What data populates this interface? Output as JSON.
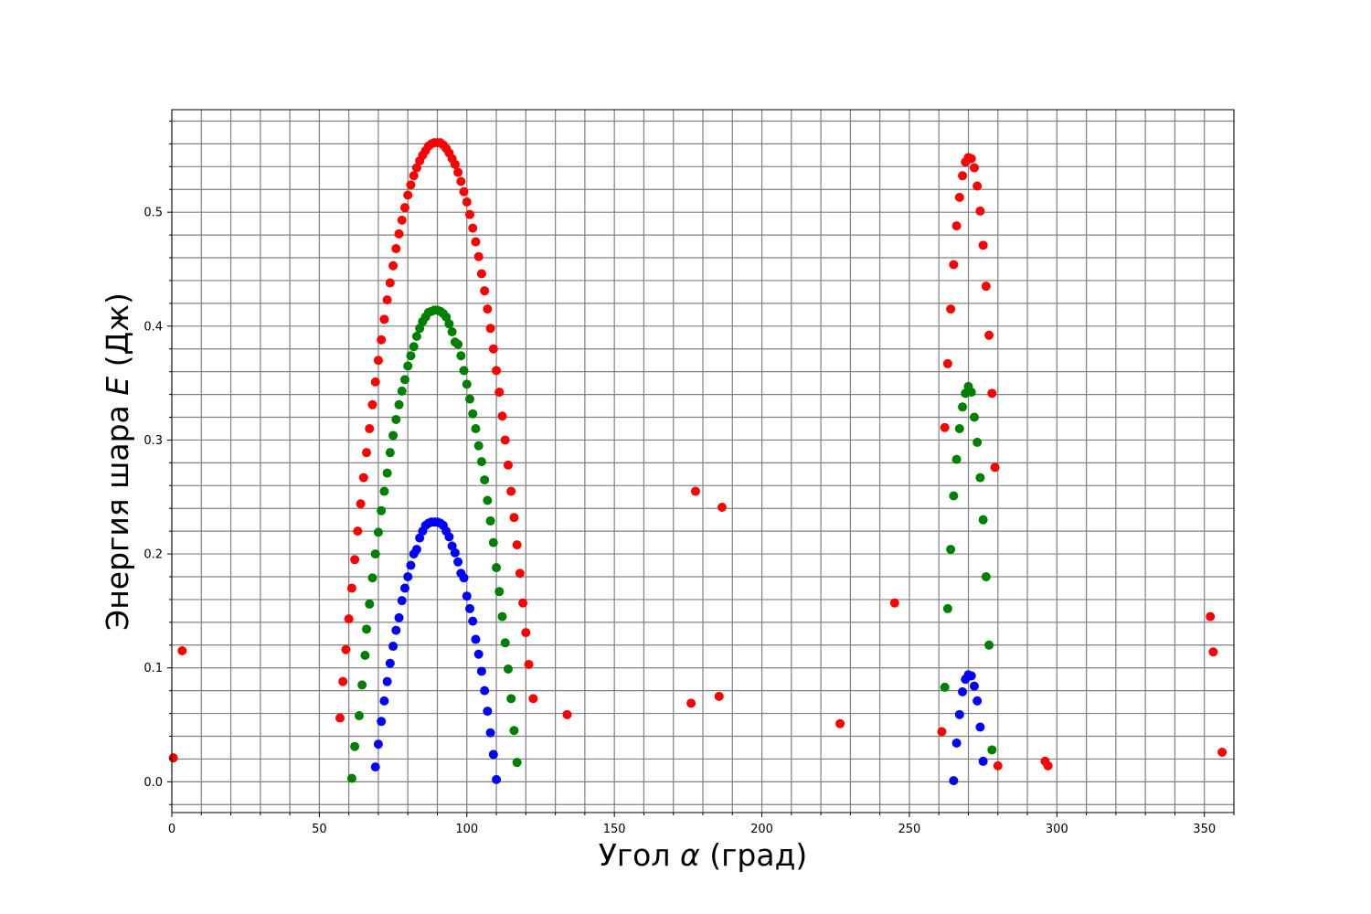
{
  "chart_data": {
    "type": "scatter",
    "title": "",
    "xlabel": {
      "prefix": "Угол ",
      "symbol": "α",
      "suffix": " (град)"
    },
    "ylabel": {
      "prefix": "Энергия шара ",
      "symbol": "E",
      "suffix": " (Дж)"
    },
    "xlim": [
      0,
      360
    ],
    "ylim": [
      -0.027,
      0.59
    ],
    "x_ticks": [
      0,
      50,
      100,
      150,
      200,
      250,
      300,
      350
    ],
    "y_ticks": [
      0.0,
      0.1,
      0.2,
      0.3,
      0.4,
      0.5
    ],
    "y_tick_labels": [
      "0.0",
      "0.1",
      "0.2",
      "0.3",
      "0.4",
      "0.5"
    ],
    "grid": true,
    "legend": "none",
    "series": [
      {
        "color": "#ff0000",
        "points": [
          [
            0.5,
            0.021
          ],
          [
            3.5,
            0.115
          ],
          [
            57,
            0.056
          ],
          [
            58,
            0.088
          ],
          [
            59,
            0.116
          ],
          [
            60,
            0.143
          ],
          [
            61,
            0.17
          ],
          [
            62,
            0.195
          ],
          [
            63,
            0.22
          ],
          [
            64,
            0.244
          ],
          [
            65,
            0.267
          ],
          [
            66,
            0.289
          ],
          [
            67,
            0.31
          ],
          [
            68,
            0.331
          ],
          [
            69,
            0.351
          ],
          [
            70,
            0.37
          ],
          [
            71,
            0.388
          ],
          [
            72,
            0.406
          ],
          [
            73,
            0.423
          ],
          [
            74,
            0.438
          ],
          [
            75,
            0.453
          ],
          [
            76,
            0.468
          ],
          [
            77,
            0.481
          ],
          [
            78,
            0.493
          ],
          [
            79,
            0.504
          ],
          [
            80,
            0.515
          ],
          [
            81,
            0.524
          ],
          [
            82,
            0.532
          ],
          [
            83,
            0.539
          ],
          [
            84,
            0.545
          ],
          [
            85,
            0.55
          ],
          [
            86,
            0.554
          ],
          [
            87,
            0.558
          ],
          [
            88,
            0.56
          ],
          [
            89,
            0.561
          ],
          [
            90,
            0.561
          ],
          [
            91,
            0.561
          ],
          [
            92,
            0.559
          ],
          [
            93,
            0.556
          ],
          [
            94,
            0.552
          ],
          [
            95,
            0.547
          ],
          [
            96,
            0.542
          ],
          [
            97,
            0.535
          ],
          [
            98,
            0.527
          ],
          [
            99,
            0.518
          ],
          [
            100,
            0.509
          ],
          [
            101,
            0.498
          ],
          [
            102,
            0.486
          ],
          [
            103,
            0.474
          ],
          [
            104,
            0.461
          ],
          [
            105,
            0.446
          ],
          [
            106,
            0.431
          ],
          [
            107,
            0.415
          ],
          [
            108,
            0.398
          ],
          [
            109,
            0.38
          ],
          [
            110,
            0.361
          ],
          [
            111,
            0.342
          ],
          [
            112,
            0.321
          ],
          [
            113,
            0.3
          ],
          [
            114,
            0.278
          ],
          [
            115,
            0.255
          ],
          [
            116,
            0.232
          ],
          [
            117,
            0.208
          ],
          [
            118,
            0.183
          ],
          [
            119,
            0.157
          ],
          [
            120,
            0.131
          ],
          [
            121,
            0.103
          ],
          [
            122.5,
            0.073
          ],
          [
            134,
            0.059
          ],
          [
            176,
            0.069
          ],
          [
            177.5,
            0.255
          ],
          [
            185.5,
            0.075
          ],
          [
            186.5,
            0.241
          ],
          [
            226.5,
            0.051
          ],
          [
            245,
            0.157
          ],
          [
            261,
            0.044
          ],
          [
            262,
            0.311
          ],
          [
            263,
            0.367
          ],
          [
            264,
            0.415
          ],
          [
            265,
            0.454
          ],
          [
            266,
            0.488
          ],
          [
            267,
            0.513
          ],
          [
            268,
            0.532
          ],
          [
            269,
            0.544
          ],
          [
            270,
            0.548
          ],
          [
            271,
            0.547
          ],
          [
            272,
            0.539
          ],
          [
            273,
            0.523
          ],
          [
            274,
            0.501
          ],
          [
            275,
            0.471
          ],
          [
            276,
            0.435
          ],
          [
            277,
            0.392
          ],
          [
            278,
            0.341
          ],
          [
            279,
            0.276
          ],
          [
            280,
            0.014
          ],
          [
            296,
            0.018
          ],
          [
            297,
            0.014
          ],
          [
            352,
            0.145
          ],
          [
            353,
            0.114
          ],
          [
            356,
            0.026
          ]
        ]
      },
      {
        "color": "#008000",
        "points": [
          [
            61,
            0.003
          ],
          [
            62,
            0.031
          ],
          [
            63.5,
            0.058
          ],
          [
            64.5,
            0.085
          ],
          [
            65.5,
            0.111
          ],
          [
            66,
            0.134
          ],
          [
            67,
            0.156
          ],
          [
            68,
            0.179
          ],
          [
            69,
            0.2
          ],
          [
            70,
            0.219
          ],
          [
            71,
            0.238
          ],
          [
            72,
            0.255
          ],
          [
            73,
            0.271
          ],
          [
            74,
            0.289
          ],
          [
            75,
            0.304
          ],
          [
            76,
            0.318
          ],
          [
            77,
            0.331
          ],
          [
            78,
            0.343
          ],
          [
            79,
            0.353
          ],
          [
            80,
            0.365
          ],
          [
            81,
            0.374
          ],
          [
            82,
            0.382
          ],
          [
            83,
            0.391
          ],
          [
            84,
            0.398
          ],
          [
            85,
            0.404
          ],
          [
            86,
            0.408
          ],
          [
            87,
            0.412
          ],
          [
            88,
            0.413
          ],
          [
            89,
            0.414
          ],
          [
            90,
            0.414
          ],
          [
            91,
            0.413
          ],
          [
            92,
            0.411
          ],
          [
            93,
            0.408
          ],
          [
            94,
            0.402
          ],
          [
            95,
            0.395
          ],
          [
            96,
            0.386
          ],
          [
            97,
            0.384
          ],
          [
            98,
            0.374
          ],
          [
            99,
            0.361
          ],
          [
            100,
            0.349
          ],
          [
            101,
            0.336
          ],
          [
            102,
            0.323
          ],
          [
            103,
            0.31
          ],
          [
            104,
            0.295
          ],
          [
            105,
            0.281
          ],
          [
            106,
            0.265
          ],
          [
            107,
            0.247
          ],
          [
            108,
            0.229
          ],
          [
            109,
            0.21
          ],
          [
            110,
            0.188
          ],
          [
            111,
            0.167
          ],
          [
            112,
            0.145
          ],
          [
            113,
            0.122
          ],
          [
            114,
            0.099
          ],
          [
            115,
            0.073
          ],
          [
            116,
            0.045
          ],
          [
            117,
            0.017
          ],
          [
            262,
            0.083
          ],
          [
            263,
            0.152
          ],
          [
            264,
            0.204
          ],
          [
            265,
            0.251
          ],
          [
            266,
            0.283
          ],
          [
            267,
            0.31
          ],
          [
            268,
            0.329
          ],
          [
            269,
            0.341
          ],
          [
            270,
            0.347
          ],
          [
            271,
            0.342
          ],
          [
            272,
            0.32
          ],
          [
            273,
            0.298
          ],
          [
            274,
            0.267
          ],
          [
            275,
            0.23
          ],
          [
            276,
            0.18
          ],
          [
            277,
            0.12
          ],
          [
            278,
            0.028
          ]
        ]
      },
      {
        "color": "#0000ff",
        "points": [
          [
            69,
            0.013
          ],
          [
            70,
            0.033
          ],
          [
            71,
            0.053
          ],
          [
            72,
            0.071
          ],
          [
            73,
            0.088
          ],
          [
            74,
            0.104
          ],
          [
            75,
            0.119
          ],
          [
            76,
            0.133
          ],
          [
            77,
            0.144
          ],
          [
            78,
            0.159
          ],
          [
            79,
            0.17
          ],
          [
            80,
            0.18
          ],
          [
            81,
            0.19
          ],
          [
            82,
            0.2
          ],
          [
            83,
            0.204
          ],
          [
            84,
            0.214
          ],
          [
            85,
            0.22
          ],
          [
            86,
            0.225
          ],
          [
            87,
            0.227
          ],
          [
            88,
            0.228
          ],
          [
            89,
            0.228
          ],
          [
            90,
            0.228
          ],
          [
            91,
            0.227
          ],
          [
            92,
            0.225
          ],
          [
            93,
            0.22
          ],
          [
            94,
            0.215
          ],
          [
            95,
            0.207
          ],
          [
            96,
            0.201
          ],
          [
            97,
            0.193
          ],
          [
            98,
            0.183
          ],
          [
            99,
            0.179
          ],
          [
            100,
            0.163
          ],
          [
            101,
            0.152
          ],
          [
            102,
            0.141
          ],
          [
            103,
            0.125
          ],
          [
            104,
            0.112
          ],
          [
            105,
            0.097
          ],
          [
            106,
            0.08
          ],
          [
            107,
            0.062
          ],
          [
            108,
            0.043
          ],
          [
            109,
            0.024
          ],
          [
            110,
            0.002
          ],
          [
            265,
            0.001
          ],
          [
            266,
            0.034
          ],
          [
            267,
            0.059
          ],
          [
            268,
            0.079
          ],
          [
            269,
            0.09
          ],
          [
            270,
            0.094
          ],
          [
            271,
            0.093
          ],
          [
            272,
            0.084
          ],
          [
            273,
            0.071
          ],
          [
            274,
            0.048
          ],
          [
            275,
            0.018
          ]
        ]
      }
    ]
  }
}
